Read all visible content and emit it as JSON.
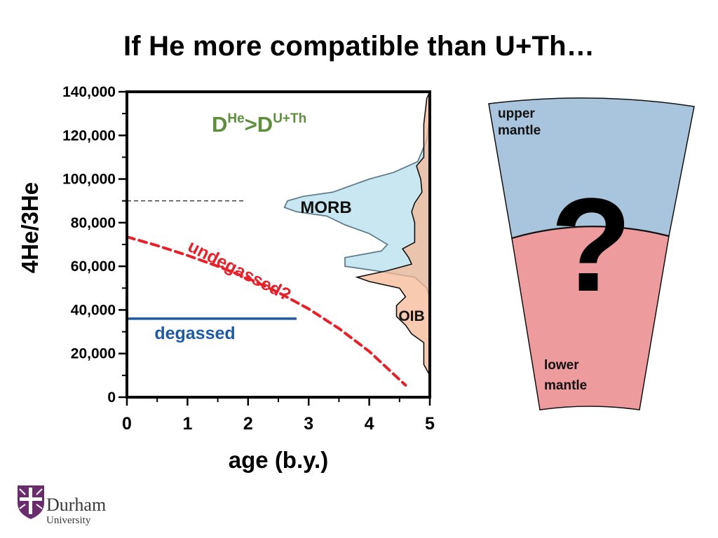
{
  "slide": {
    "title": "If He more compatible than U+Th…"
  },
  "chart_data": {
    "type": "area",
    "xlabel": "age (b.y.)",
    "ylabel": "4He/3He",
    "xlim": [
      0,
      5
    ],
    "ylim": [
      0,
      140000
    ],
    "x_ticks": [
      0,
      1,
      2,
      3,
      4,
      5
    ],
    "y_ticks": [
      0,
      20000,
      40000,
      60000,
      80000,
      100000,
      120000,
      140000
    ],
    "y_tick_labels": [
      "0",
      "20,000",
      "40,000",
      "60,000",
      "80,000",
      "100,000",
      "120,000",
      "140,000"
    ],
    "annotation": {
      "main": "D",
      "sup1": "He",
      "mid": ">D",
      "sup2": "U+Th"
    },
    "reference_line": {
      "y": 90000,
      "x_end": 1.95
    },
    "degassed": {
      "label": "degassed",
      "y": 36000,
      "x": [
        0,
        2.8
      ],
      "color": "#1f5aa6"
    },
    "undegassed": {
      "label": "undegassed?",
      "color": "#e8202a",
      "x": [
        0,
        0.5,
        1,
        1.5,
        2,
        2.5,
        3,
        3.5,
        4,
        4.6
      ],
      "y": [
        73500,
        69500,
        65000,
        60000,
        54500,
        48000,
        40500,
        31500,
        21000,
        5500
      ]
    },
    "distributions": [
      {
        "name": "MORB",
        "color": "#bfe3ee",
        "profile": [
          [
            0.0,
            130000
          ],
          [
            0.05,
            118000
          ],
          [
            0.2,
            108000
          ],
          [
            0.6,
            103000
          ],
          [
            1.0,
            100000
          ],
          [
            1.4,
            96000
          ],
          [
            1.6,
            94000
          ],
          [
            2.1,
            92000
          ],
          [
            2.35,
            90000
          ],
          [
            2.4,
            87000
          ],
          [
            2.2,
            85000
          ],
          [
            1.7,
            83000
          ],
          [
            1.4,
            79000
          ],
          [
            1.0,
            75000
          ],
          [
            0.7,
            70000
          ],
          [
            0.8,
            67000
          ],
          [
            1.4,
            64000
          ],
          [
            1.4,
            60000
          ],
          [
            0.9,
            58000
          ],
          [
            0.25,
            55000
          ],
          [
            0.05,
            50000
          ],
          [
            0.0,
            45000
          ]
        ]
      },
      {
        "name": "OIB",
        "color": "#f5b896",
        "profile": [
          [
            0.0,
            140000
          ],
          [
            0.05,
            137000
          ],
          [
            0.1,
            125000
          ],
          [
            0.1,
            118000
          ],
          [
            0.1,
            110000
          ],
          [
            0.22,
            106000
          ],
          [
            0.15,
            100000
          ],
          [
            0.13,
            94000
          ],
          [
            0.25,
            89000
          ],
          [
            0.3,
            85000
          ],
          [
            0.25,
            80000
          ],
          [
            0.25,
            76000
          ],
          [
            0.25,
            71000
          ],
          [
            0.45,
            68000
          ],
          [
            0.35,
            64000
          ],
          [
            0.3,
            61000
          ],
          [
            0.7,
            58000
          ],
          [
            1.2,
            55000
          ],
          [
            1.0,
            53000
          ],
          [
            0.5,
            50000
          ],
          [
            0.4,
            46000
          ],
          [
            0.55,
            42000
          ],
          [
            0.55,
            37000
          ],
          [
            0.4,
            33000
          ],
          [
            0.3,
            29000
          ],
          [
            0.1,
            25000
          ],
          [
            0.1,
            15000
          ],
          [
            0.0,
            10000
          ],
          [
            0.0,
            0
          ]
        ]
      }
    ]
  },
  "mantle": {
    "question_mark": "?",
    "upper_label_line1": "upper",
    "upper_label_line2": "mantle",
    "lower_label_line1": "lower",
    "lower_label_line2": "mantle",
    "upper_color": "#a9c4dd",
    "lower_color": "#ee9b9e"
  },
  "logo": {
    "name": "Durham",
    "subtitle": "University",
    "crest_color": "#6b2c6e"
  }
}
